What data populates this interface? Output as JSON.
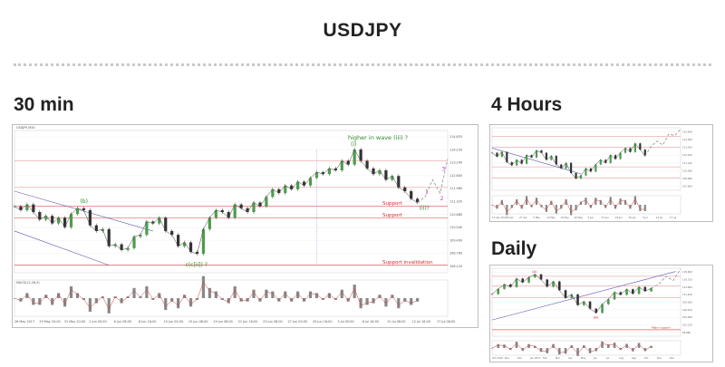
{
  "page": {
    "title": "USDJPY",
    "sections": {
      "m30": "30 min",
      "h4": "4 Hours",
      "daily": "Daily"
    }
  },
  "chart_data": [
    {
      "id": "m30",
      "type": "line",
      "header": "USDJPY,M30",
      "ylim": [
        108.0,
        115.5
      ],
      "y_ticks": [
        "114.625",
        "114.230",
        "113.240",
        "112.600",
        "111.960",
        "111.320",
        "110.680",
        "110.040",
        "109.400",
        "108.760",
        "108.120"
      ],
      "x_ticks": [
        "26 May 2017",
        "29 May 20:00",
        "31 May 10:00",
        "2 Jun 00:00",
        "6 Jun 08:00",
        "8 Jun 16:00",
        "13 Jun 00:00",
        "15 Jun 08:00",
        "19 Jun 08:00",
        "21 Jun 16:00",
        "23 Jun 08:00",
        "27 Jun 00:00",
        "29 Jun 16:00",
        "3 Jul 00:00",
        "6 Jul 16:00",
        "10 Jul 08:00",
        "12 Jul 16:00",
        "17 Jul 08:00"
      ],
      "indicator": "MACD(12,26,9)",
      "series": [
        {
          "values": [
            111.5,
            111.3,
            111.6,
            111.2,
            110.8,
            111.0,
            110.6,
            110.9,
            110.4,
            111.1,
            111.4,
            111.3,
            110.5,
            110.2,
            110.3,
            109.4,
            109.5,
            109.2,
            109.3,
            109.9,
            110.0,
            110.7,
            110.6,
            110.9,
            110.2,
            110.0,
            109.4,
            109.6,
            109.1,
            109.0,
            110.3,
            110.9,
            111.3,
            111.2,
            110.9,
            111.6,
            111.4,
            111.2,
            111.7,
            111.5,
            112.0,
            112.4,
            112.2,
            112.6,
            112.4,
            112.8,
            112.6,
            113.0,
            113.3,
            113.2,
            113.5,
            113.4,
            113.9,
            113.7,
            114.5,
            113.9,
            113.5,
            113.2,
            113.4,
            112.9,
            113.1,
            112.5,
            112.3,
            111.9,
            111.7
          ]
        }
      ],
      "hlines": [
        {
          "label": "Support",
          "value": 111.5
        },
        {
          "label": "Support",
          "value": 110.9
        },
        {
          "label": "Support invalidation",
          "value": 108.4
        }
      ],
      "projection": [
        112.0,
        112.9,
        112.2,
        114.0
      ],
      "annotations": {
        "forecast": "higher in wave (iii) ?",
        "wave_i": "(i)",
        "wave_ii": "(ii)?",
        "wave_b": "(b)",
        "wave_ciii": "c(c[ii]) ?",
        "proj_1": "1",
        "proj_2": "2",
        "proj_3": "3"
      }
    },
    {
      "id": "h4",
      "type": "line",
      "ylim": [
        108.0,
        116.0
      ],
      "y_ticks": [
        "115.460",
        "114.380",
        "113.300",
        "112.220",
        "111.140",
        "110.060",
        "108.980",
        "107.900"
      ],
      "x_ticks": [
        "13 Apr 2017",
        "20 Apr",
        "27 Apr",
        "5 May",
        "12 May",
        "19 May",
        "29 May",
        "5 Jun",
        "12 Jun",
        "19 Jun",
        "26 Jun",
        "3 Jul",
        "10 Jul",
        "17 Jul"
      ],
      "series": [
        {
          "values": [
            112.8,
            112.3,
            112.9,
            111.6,
            111.2,
            111.9,
            111.4,
            112.5,
            112.2,
            113.1,
            112.8,
            111.9,
            112.4,
            111.3,
            110.8,
            111.5,
            110.2,
            109.5,
            109.9,
            110.8,
            110.4,
            111.3,
            111.9,
            111.5,
            112.5,
            112.0,
            112.8,
            113.4,
            112.9,
            114.0,
            113.2,
            112.4
          ]
        }
      ],
      "projection": [
        113.6,
        114.3,
        113.8,
        115.2,
        115.0,
        115.8
      ]
    },
    {
      "id": "daily",
      "type": "line",
      "ylim": [
        99.0,
        120.0
      ],
      "y_ticks": [
        "118.660",
        "116.310",
        "113.960",
        "111.610",
        "109.260",
        "106.910",
        "104.560",
        "102.210",
        "99.860"
      ],
      "x_ticks": [
        "Oct 2016",
        "Nov",
        "Dec",
        "Jan 2017",
        "Feb",
        "Mar",
        "Apr",
        "May",
        "Jun",
        "Jul",
        "Aug",
        "Sep",
        "Oct",
        "Nov",
        "Dec"
      ],
      "series": [
        {
          "values": [
            112.0,
            113.6,
            115.0,
            114.2,
            116.8,
            115.6,
            117.2,
            118.1,
            116.5,
            114.3,
            115.9,
            113.2,
            110.8,
            111.9,
            108.6,
            109.7,
            107.5,
            106.2,
            108.9,
            110.4,
            112.6,
            111.8,
            113.5,
            112.1,
            114.2,
            112.9,
            113.8
          ]
        }
      ],
      "hlines": [
        {
          "label": "Major support",
          "value": 101.0
        }
      ],
      "projection": [
        115.0,
        117.5,
        116.2,
        119.8
      ],
      "annotations": {
        "wave_A": "(A)",
        "wave_B": "(B)"
      }
    }
  ]
}
